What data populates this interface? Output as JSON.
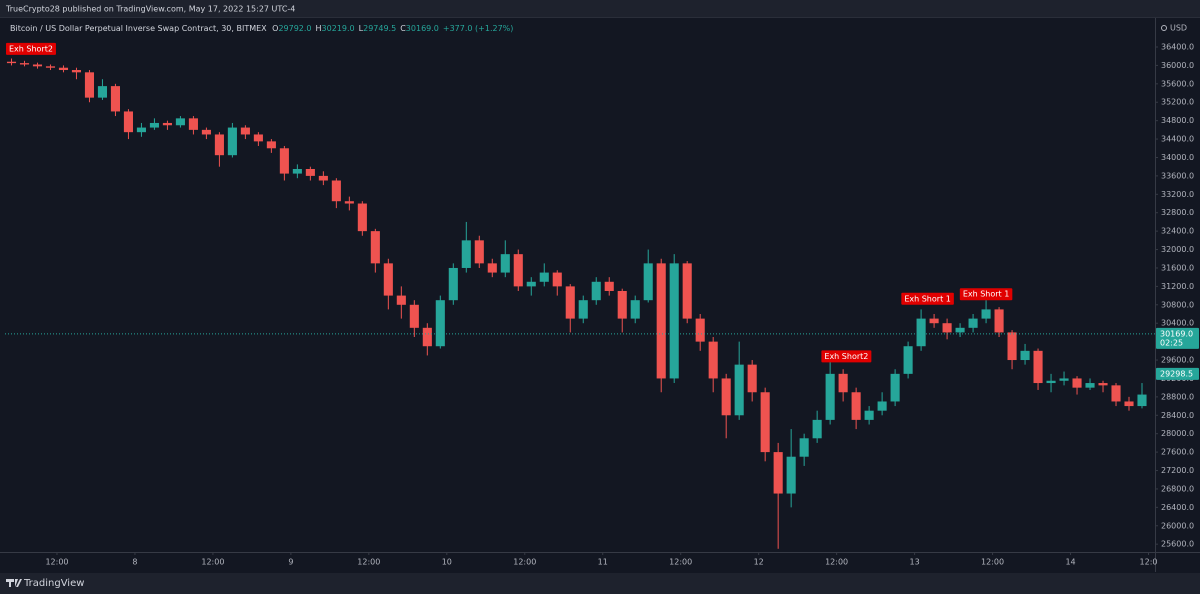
{
  "header": {
    "publisher": "TrueCrypto28 published on TradingView.com, May 17, 2022 15:27 UTC-4",
    "brand": "TradingView"
  },
  "chart_data": {
    "type": "candlestick",
    "legend": {
      "symbol": "Bitcoin / US Dollar Perpetual Inverse Swap Contract, 30, BITMEX",
      "ohlc": [
        {
          "key": "O",
          "value": "29792.0"
        },
        {
          "key": "H",
          "value": "30219.0"
        },
        {
          "key": "L",
          "value": "29749.5"
        },
        {
          "key": "C",
          "value": "30169.0"
        }
      ],
      "change": "+377.0 (+1.27%)"
    },
    "currency": "USD",
    "up_color": "#26a69a",
    "down_color": "#ef5350",
    "xlim": [
      0,
      177
    ],
    "xticks": [
      {
        "value": 8,
        "label": "12:00"
      },
      {
        "value": 20,
        "label": "8"
      },
      {
        "value": 32,
        "label": "12:00"
      },
      {
        "value": 44,
        "label": "9"
      },
      {
        "value": 56,
        "label": "12:00"
      },
      {
        "value": 68,
        "label": "10"
      },
      {
        "value": 80,
        "label": "12:00"
      },
      {
        "value": 92,
        "label": "11"
      },
      {
        "value": 104,
        "label": "12:00"
      },
      {
        "value": 116,
        "label": "12"
      },
      {
        "value": 128,
        "label": "12:00"
      },
      {
        "value": 140,
        "label": "13"
      },
      {
        "value": 152,
        "label": "12:00"
      },
      {
        "value": 164,
        "label": "14"
      },
      {
        "value": 176,
        "label": "12:0"
      }
    ],
    "ylim": [
      25430,
      37030
    ],
    "yticks": [
      {
        "value": 25600,
        "label": "25600.0"
      },
      {
        "value": 26000,
        "label": "26000.0"
      },
      {
        "value": 26400,
        "label": "26400.0"
      },
      {
        "value": 26800,
        "label": "26800.0"
      },
      {
        "value": 27200,
        "label": "27200.0"
      },
      {
        "value": 27600,
        "label": "27600.0"
      },
      {
        "value": 28000,
        "label": "28000.0"
      },
      {
        "value": 28400,
        "label": "28400.0"
      },
      {
        "value": 28800,
        "label": "28800.0"
      },
      {
        "value": 29200,
        "label": "29200.0"
      },
      {
        "value": 29600,
        "label": "29600.0"
      },
      {
        "value": 30000,
        "label": "30000.0"
      },
      {
        "value": 30400,
        "label": "30400.0"
      },
      {
        "value": 30800,
        "label": "30800.0"
      },
      {
        "value": 31200,
        "label": "31200.0"
      },
      {
        "value": 31600,
        "label": "31600.0"
      },
      {
        "value": 32000,
        "label": "32000.0"
      },
      {
        "value": 32400,
        "label": "32400.0"
      },
      {
        "value": 32800,
        "label": "32800.0"
      },
      {
        "value": 33200,
        "label": "33200.0"
      },
      {
        "value": 33600,
        "label": "33600.0"
      },
      {
        "value": 34000,
        "label": "34000.0"
      },
      {
        "value": 34400,
        "label": "34400.0"
      },
      {
        "value": 34800,
        "label": "34800.0"
      },
      {
        "value": 35200,
        "label": "35200.0"
      },
      {
        "value": 35600,
        "label": "35600.0"
      },
      {
        "value": 36000,
        "label": "36000.0"
      },
      {
        "value": 36400,
        "label": "36400.0"
      }
    ],
    "x": [
      1,
      3,
      5,
      7,
      9,
      11,
      13,
      15,
      17,
      19,
      21,
      23,
      25,
      27,
      29,
      31,
      33,
      35,
      37,
      39,
      41,
      43,
      45,
      47,
      49,
      51,
      53,
      55,
      57,
      59,
      61,
      63,
      65,
      67,
      69,
      71,
      73,
      75,
      77,
      79,
      81,
      83,
      85,
      87,
      89,
      91,
      93,
      95,
      97,
      99,
      101,
      103,
      105,
      107,
      109,
      111,
      113,
      115,
      117,
      119,
      121,
      123,
      125,
      127,
      129,
      131,
      133,
      135,
      137,
      139,
      141,
      143,
      145,
      147,
      149,
      151,
      153,
      155,
      157,
      159,
      161,
      163,
      165,
      167,
      169,
      171,
      173,
      175
    ],
    "open": [
      36080,
      36050,
      36020,
      35980,
      35950,
      35900,
      35850,
      35300,
      35550,
      35000,
      34550,
      34650,
      34750,
      34700,
      34850,
      34600,
      34500,
      34050,
      34650,
      34500,
      34350,
      34200,
      33650,
      33750,
      33600,
      33500,
      33050,
      33000,
      32400,
      31700,
      31000,
      30800,
      30300,
      29900,
      30900,
      31600,
      32200,
      31700,
      31500,
      31900,
      31200,
      31300,
      31500,
      31200,
      30500,
      30900,
      31300,
      31100,
      30500,
      30900,
      31700,
      29200,
      31700,
      30500,
      30000,
      29200,
      28400,
      29500,
      28900,
      27600,
      26700,
      27500,
      27900,
      28300,
      29300,
      28900,
      28300,
      28500,
      28700,
      29300,
      29900,
      30500,
      30400,
      30200,
      30300,
      30500,
      30700,
      30200,
      29600,
      29800,
      29100,
      29150,
      29200,
      29000,
      29100,
      29050,
      28700,
      28600
    ],
    "high": [
      36150,
      36100,
      36060,
      36020,
      36000,
      35950,
      35900,
      35700,
      35600,
      35050,
      34750,
      34850,
      34800,
      34900,
      34900,
      34650,
      34550,
      34750,
      34700,
      34550,
      34400,
      34250,
      33850,
      33800,
      33700,
      33550,
      33150,
      33050,
      32450,
      31800,
      31200,
      30900,
      30400,
      31000,
      31700,
      32600,
      32300,
      31800,
      32200,
      32000,
      31400,
      31700,
      31550,
      31250,
      31000,
      31400,
      31400,
      31150,
      31000,
      32000,
      31800,
      31900,
      31750,
      30600,
      30100,
      29300,
      30000,
      29600,
      29000,
      27800,
      28100,
      28000,
      28500,
      29600,
      29400,
      29000,
      28600,
      28900,
      29400,
      30000,
      30700,
      30600,
      30500,
      30400,
      30600,
      30900,
      30750,
      30250,
      29950,
      29850,
      29300,
      29350,
      29250,
      29200,
      29150,
      29100,
      28800,
      29100
    ],
    "low": [
      36000,
      35980,
      35930,
      35900,
      35850,
      35700,
      35200,
      35250,
      34900,
      34400,
      34450,
      34600,
      34600,
      34650,
      34500,
      34400,
      33800,
      34000,
      34400,
      34250,
      34100,
      33500,
      33550,
      33500,
      33400,
      32900,
      32850,
      32300,
      31500,
      30700,
      30500,
      30100,
      29700,
      29850,
      30800,
      31500,
      31600,
      31400,
      31400,
      31100,
      31000,
      31200,
      31000,
      30200,
      30400,
      30800,
      31000,
      30200,
      30400,
      30850,
      28900,
      29100,
      30400,
      29800,
      28900,
      27900,
      28300,
      28700,
      27400,
      25500,
      26400,
      27300,
      27800,
      28200,
      28700,
      28100,
      28200,
      28400,
      28600,
      29200,
      29800,
      30300,
      30050,
      30100,
      30200,
      30400,
      30100,
      29400,
      29500,
      28950,
      28900,
      29050,
      28850,
      28950,
      28900,
      28600,
      28500,
      28550
    ],
    "close": [
      36050,
      36020,
      35980,
      35950,
      35900,
      35850,
      35300,
      35550,
      35000,
      34550,
      34650,
      34750,
      34700,
      34850,
      34600,
      34500,
      34050,
      34650,
      34500,
      34350,
      34200,
      33650,
      33750,
      33600,
      33500,
      33050,
      33000,
      32400,
      31700,
      31000,
      30800,
      30300,
      29900,
      30900,
      31600,
      32200,
      31700,
      31500,
      31900,
      31200,
      31300,
      31500,
      31200,
      30500,
      30900,
      31300,
      31100,
      30500,
      30900,
      31700,
      29200,
      31700,
      30500,
      30000,
      29200,
      28400,
      29500,
      28900,
      27600,
      26700,
      27500,
      27900,
      28300,
      29300,
      28900,
      28300,
      28500,
      28700,
      29300,
      29900,
      30500,
      30400,
      30200,
      30300,
      30500,
      30700,
      30200,
      29600,
      29800,
      29100,
      29150,
      29200,
      29000,
      29100,
      29050,
      28700,
      28600,
      28850
    ],
    "annotations": [
      {
        "text": "Exh Short2",
        "x": 4,
        "y": 36230
      },
      {
        "text": "Exh Short2",
        "x": 129.5,
        "y": 29550
      },
      {
        "text": "Exh Short 1",
        "x": 142,
        "y": 30800
      },
      {
        "text": "Exh Short 1",
        "x": 151,
        "y": 30900
      }
    ],
    "price_labels": [
      {
        "value": 30169.0,
        "label": "30169.0",
        "countdown": "02:25"
      },
      {
        "value": 29298.5,
        "label": "29298.5"
      }
    ]
  }
}
